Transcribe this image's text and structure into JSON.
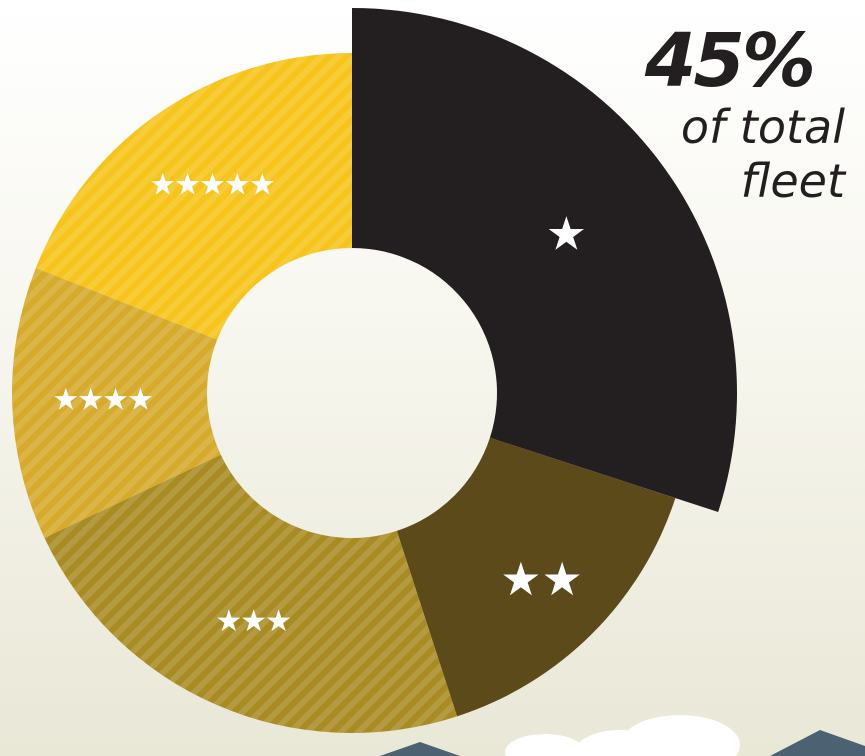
{
  "chart_data": {
    "type": "donut",
    "categories": [
      "★",
      "★★",
      "★★★",
      "★★★★",
      "★★★★★"
    ],
    "values": [
      30,
      15,
      23,
      13,
      19
    ],
    "colors": [
      "#231f20",
      "#5c4a1b",
      "#a98b24",
      "#d6aa2c",
      "#f7c41c"
    ],
    "hatched": [
      false,
      false,
      true,
      true,
      true
    ],
    "annotation": {
      "value": {
        "value": 45,
        "label": "45%"
      },
      "text": "of total fleet"
    }
  }
}
